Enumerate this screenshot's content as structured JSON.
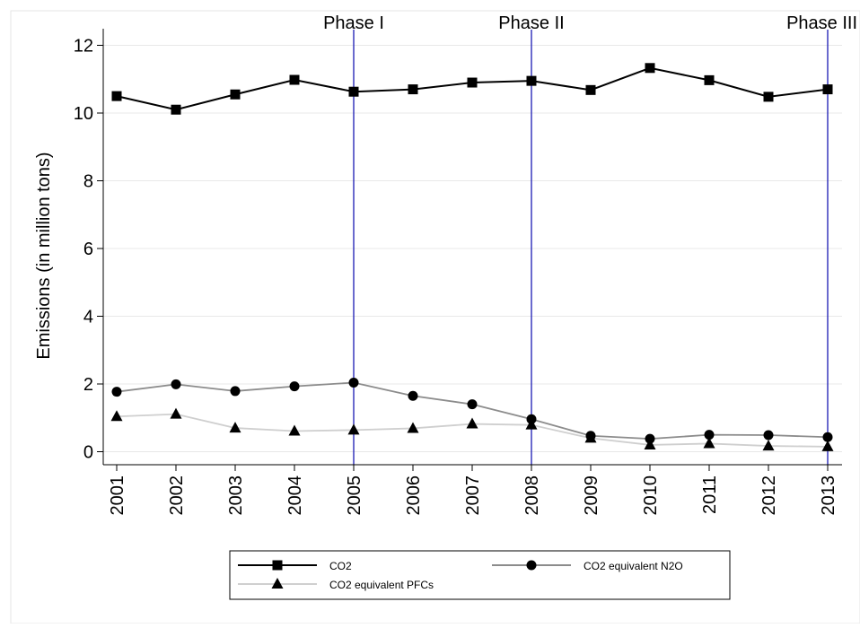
{
  "chart_data": {
    "type": "line",
    "title": "",
    "xlabel": "",
    "ylabel": "Emissions (in million tons)",
    "x": [
      2001,
      2002,
      2003,
      2004,
      2005,
      2006,
      2007,
      2008,
      2009,
      2010,
      2011,
      2012,
      2013
    ],
    "x_tick_labels": [
      "2001",
      "2002",
      "2003",
      "2004",
      "2005",
      "2006",
      "2007",
      "2008",
      "2009",
      "2010",
      "2011",
      "2012",
      "2013"
    ],
    "ylim": [
      0,
      12
    ],
    "y_ticks": [
      0,
      2,
      4,
      6,
      8,
      10,
      12
    ],
    "grid": "horizontal",
    "series": [
      {
        "name": "CO2",
        "color": "#000000",
        "marker": "square",
        "values": [
          10.5,
          10.1,
          10.55,
          10.98,
          10.63,
          10.7,
          10.9,
          10.95,
          10.68,
          11.33,
          10.97,
          10.48,
          10.7
        ]
      },
      {
        "name": "CO2 equivalent N2O",
        "color": "#8c8c8c",
        "marker": "circle",
        "values": [
          1.77,
          1.99,
          1.79,
          1.93,
          2.04,
          1.65,
          1.4,
          0.96,
          0.47,
          0.38,
          0.5,
          0.49,
          0.43
        ]
      },
      {
        "name": "CO2 equivalent PFCs",
        "color": "#cfcfcf",
        "marker": "triangle",
        "values": [
          1.04,
          1.11,
          0.7,
          0.61,
          0.64,
          0.69,
          0.82,
          0.79,
          0.4,
          0.2,
          0.24,
          0.17,
          0.15
        ]
      }
    ],
    "phase_lines": [
      {
        "x": 2005,
        "label": "Phase I"
      },
      {
        "x": 2008,
        "label": "Phase II"
      },
      {
        "x": 2013,
        "label": "Phase III"
      }
    ],
    "phase_line_color": "#1a1ab4",
    "legend_placement": "bottom"
  }
}
